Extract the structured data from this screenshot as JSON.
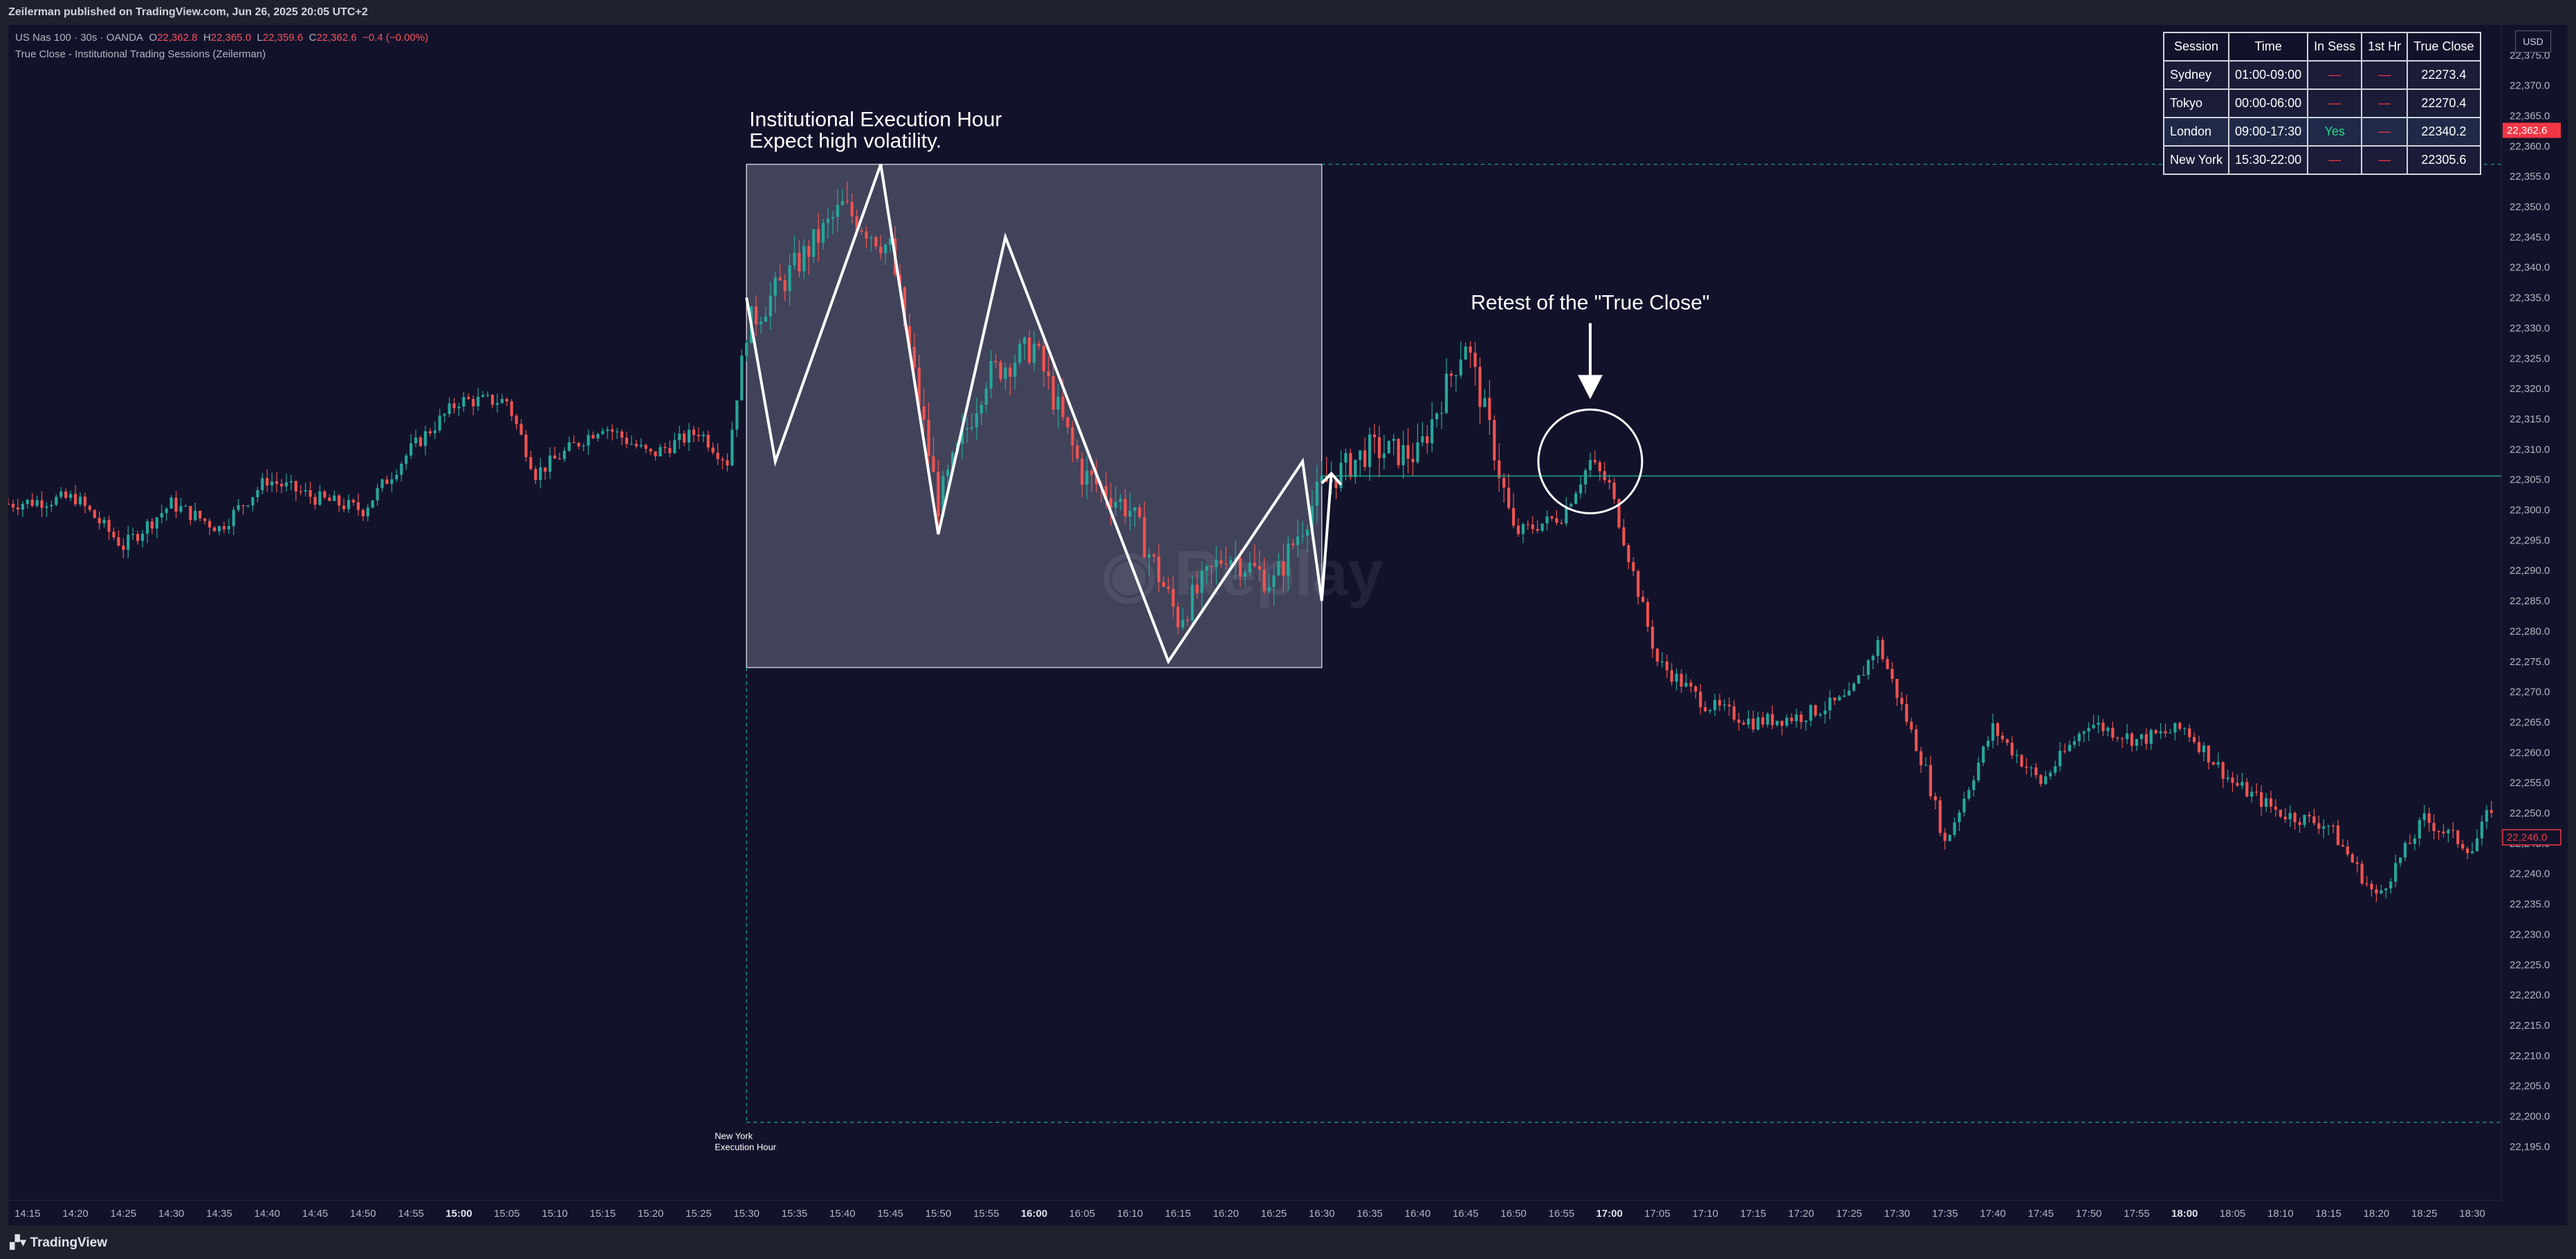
{
  "header": {
    "publish_line": "Zeilerman published on TradingView.com, Jun 26, 2025 20:05 UTC+2"
  },
  "legend": {
    "symbol": "US Nas 100 · 30s · OANDA",
    "o_label": "O",
    "o_value": "22,362.8",
    "h_label": "H",
    "h_value": "22,365.0",
    "l_label": "L",
    "l_value": "22,359.6",
    "c_label": "C",
    "c_value": "22,362.6",
    "change": "−0.4 (−0.00%)",
    "indicator": "True Close - Institutional Trading Sessions (Zeilerman)"
  },
  "currency": "USD",
  "colors": {
    "background": "#12132b",
    "bull": "#26a69a",
    "bear": "#ef5350",
    "true_close_line": "#1f9e85",
    "highlight_box": "#4a4c64",
    "price_label": "#f23645"
  },
  "annotations": {
    "box_title_line1": "Institutional Execution Hour",
    "box_title_line2": "Expect high volatility.",
    "retest_text": "Retest of the \"True Close\"",
    "session_label_line1": "New York",
    "session_label_line2": "Execution Hour",
    "watermark": "Replay"
  },
  "session_table": {
    "headers": [
      "Session",
      "Time",
      "In Sess",
      "1st Hr",
      "True Close"
    ],
    "rows": [
      {
        "session": "Sydney",
        "time": "01:00-09:00",
        "in_sess": "—",
        "first_hr": "—",
        "true_close": "22273.4"
      },
      {
        "session": "Tokyo",
        "time": "00:00-06:00",
        "in_sess": "—",
        "first_hr": "—",
        "true_close": "22270.4"
      },
      {
        "session": "London",
        "time": "09:00-17:30",
        "in_sess": "Yes",
        "first_hr": "—",
        "true_close": "22340.2"
      },
      {
        "session": "New York",
        "time": "15:30-22:00",
        "in_sess": "—",
        "first_hr": "—",
        "true_close": "22305.6"
      }
    ]
  },
  "price_labels": {
    "current_price": "22,362.6",
    "red_marker": "22,246.0"
  },
  "footer": {
    "logo": "TradingView"
  },
  "chart_data": {
    "type": "candlestick",
    "symbol": "US Nas 100",
    "timeframe": "30s",
    "x": [
      "14:15",
      "14:20",
      "14:25",
      "14:30",
      "14:35",
      "14:40",
      "14:45",
      "14:50",
      "14:55",
      "15:00",
      "15:05",
      "15:10",
      "15:15",
      "15:20",
      "15:25",
      "15:30",
      "15:35",
      "15:40",
      "15:45",
      "15:50",
      "15:55",
      "16:00",
      "16:05",
      "16:10",
      "16:15",
      "16:20",
      "16:25",
      "16:30",
      "16:35",
      "16:40",
      "16:45",
      "16:50",
      "16:55",
      "17:00",
      "17:05",
      "17:10",
      "17:15",
      "17:20",
      "17:25",
      "17:30",
      "17:35",
      "17:40",
      "17:45",
      "17:50",
      "17:55",
      "18:00",
      "18:05",
      "18:10",
      "18:15",
      "18:20",
      "18:25",
      "18:30"
    ],
    "bold_ticks": [
      "15:00",
      "16:00",
      "17:00",
      "18:00"
    ],
    "y_ticks": [
      "22,375.0",
      "22,370.0",
      "22,365.0",
      "22,360.0",
      "22,355.0",
      "22,350.0",
      "22,345.0",
      "22,340.0",
      "22,335.0",
      "22,330.0",
      "22,325.0",
      "22,320.0",
      "22,315.0",
      "22,310.0",
      "22,305.0",
      "22,300.0",
      "22,295.0",
      "22,290.0",
      "22,285.0",
      "22,280.0",
      "22,275.0",
      "22,270.0",
      "22,265.0",
      "22,260.0",
      "22,255.0",
      "22,250.0",
      "22,245.0",
      "22,240.0",
      "22,235.0",
      "22,230.0",
      "22,225.0",
      "22,220.0",
      "22,215.0",
      "22,210.0",
      "22,205.0",
      "22,200.0",
      "22,195.0"
    ],
    "ylim": [
      22191,
      22377
    ],
    "price_path": [
      [
        "14:13",
        22301
      ],
      [
        "14:20",
        22302
      ],
      [
        "14:25",
        22294
      ],
      [
        "14:30",
        22301
      ],
      [
        "14:35",
        22297
      ],
      [
        "14:40",
        22305
      ],
      [
        "14:45",
        22302
      ],
      [
        "14:50",
        22300
      ],
      [
        "14:55",
        22310
      ],
      [
        "15:00",
        22318
      ],
      [
        "15:05",
        22318
      ],
      [
        "15:08",
        22306
      ],
      [
        "15:15",
        22314
      ],
      [
        "15:20",
        22309
      ],
      [
        "15:25",
        22313
      ],
      [
        "15:28",
        22308
      ],
      [
        "15:30",
        22330
      ],
      [
        "15:35",
        22340
      ],
      [
        "15:40",
        22350
      ],
      [
        "15:45",
        22343
      ],
      [
        "15:50",
        22301
      ],
      [
        "15:55",
        22322
      ],
      [
        "16:00",
        22327
      ],
      [
        "16:05",
        22306
      ],
      [
        "16:10",
        22300
      ],
      [
        "16:15",
        22282
      ],
      [
        "16:20",
        22293
      ],
      [
        "16:25",
        22288
      ],
      [
        "16:30",
        22304
      ],
      [
        "16:35",
        22310
      ],
      [
        "16:40",
        22309
      ],
      [
        "16:45",
        22328
      ],
      [
        "16:48",
        22310
      ],
      [
        "16:50",
        22296
      ],
      [
        "16:55",
        22299
      ],
      [
        "16:58",
        22308
      ],
      [
        "17:00",
        22304
      ],
      [
        "17:05",
        22275
      ],
      [
        "17:10",
        22268
      ],
      [
        "17:15",
        22265
      ],
      [
        "17:20",
        22266
      ],
      [
        "17:25",
        22269
      ],
      [
        "17:28",
        22278
      ],
      [
        "17:33",
        22257
      ],
      [
        "17:35",
        22245
      ],
      [
        "17:40",
        22264
      ],
      [
        "17:45",
        22255
      ],
      [
        "17:50",
        22265
      ],
      [
        "17:55",
        22262
      ],
      [
        "18:00",
        22264
      ],
      [
        "18:05",
        22255
      ],
      [
        "18:10",
        22250
      ],
      [
        "18:15",
        22248
      ],
      [
        "18:20",
        22236
      ],
      [
        "18:25",
        22249
      ],
      [
        "18:30",
        22244
      ],
      [
        "18:32",
        22251
      ]
    ],
    "true_close": 22305.6,
    "execution_hour_box": {
      "start": "15:30",
      "end": "16:30",
      "high": 22357,
      "low": 22274
    },
    "zigzag": [
      [
        "15:30",
        22335
      ],
      [
        "15:33",
        22308
      ],
      [
        "15:44",
        22357
      ],
      [
        "15:50",
        22296
      ],
      [
        "15:57",
        22345
      ],
      [
        "16:14",
        22275
      ],
      [
        "16:28",
        22308
      ],
      [
        "16:30",
        22285
      ],
      [
        "16:31",
        22306
      ]
    ],
    "retest_circle": {
      "time": "16:58",
      "price": 22308
    },
    "session_dashes": {
      "top": 22357,
      "bottom": 22199,
      "start": "15:30"
    },
    "current_price": 22362.6,
    "red_marker_price": 22246.0
  }
}
